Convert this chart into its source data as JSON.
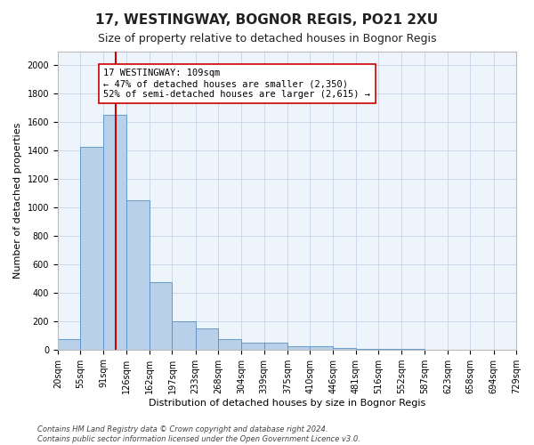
{
  "title": "17, WESTINGWAY, BOGNOR REGIS, PO21 2XU",
  "subtitle": "Size of property relative to detached houses in Bognor Regis",
  "xlabel": "Distribution of detached houses by size in Bognor Regis",
  "ylabel": "Number of detached properties",
  "bin_edges": [
    20,
    55,
    91,
    126,
    162,
    197,
    233,
    268,
    304,
    339,
    375,
    410,
    446,
    481,
    516,
    552,
    587,
    623,
    658,
    694,
    729
  ],
  "bar_heights": [
    75,
    1425,
    1650,
    1050,
    475,
    200,
    150,
    75,
    50,
    50,
    25,
    25,
    10,
    5,
    5,
    3,
    0,
    0,
    0,
    0
  ],
  "bar_color": "#b8d0e8",
  "bar_edge_color": "#5590c8",
  "grid_color": "#c8d8ea",
  "background_color": "#eef4fb",
  "vline_x": 109,
  "vline_color": "#cc0000",
  "annotation_text": "17 WESTINGWAY: 109sqm\n← 47% of detached houses are smaller (2,350)\n52% of semi-detached houses are larger (2,615) →",
  "ylim": [
    0,
    2100
  ],
  "yticks": [
    0,
    200,
    400,
    600,
    800,
    1000,
    1200,
    1400,
    1600,
    1800,
    2000
  ],
  "footer_line1": "Contains HM Land Registry data © Crown copyright and database right 2024.",
  "footer_line2": "Contains public sector information licensed under the Open Government Licence v3.0.",
  "title_fontsize": 11,
  "subtitle_fontsize": 9,
  "axis_label_fontsize": 8,
  "tick_fontsize": 7,
  "annotation_fontsize": 7.5,
  "footer_fontsize": 6
}
